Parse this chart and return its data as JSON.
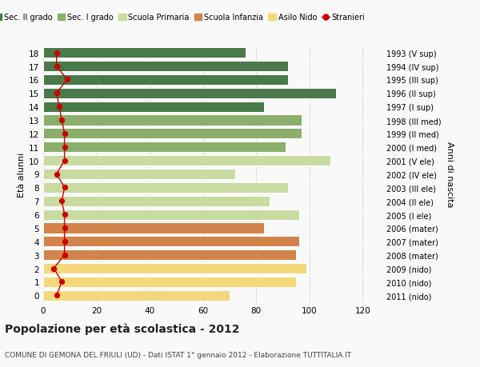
{
  "ages": [
    0,
    1,
    2,
    3,
    4,
    5,
    6,
    7,
    8,
    9,
    10,
    11,
    12,
    13,
    14,
    15,
    16,
    17,
    18
  ],
  "years": [
    "2011 (nido)",
    "2010 (nido)",
    "2009 (nido)",
    "2008 (mater)",
    "2007 (mater)",
    "2006 (mater)",
    "2005 (I ele)",
    "2004 (II ele)",
    "2003 (III ele)",
    "2002 (IV ele)",
    "2001 (V ele)",
    "2000 (I med)",
    "1999 (II med)",
    "1998 (III med)",
    "1997 (I sup)",
    "1996 (II sup)",
    "1995 (III sup)",
    "1994 (IV sup)",
    "1993 (V sup)"
  ],
  "bar_values": [
    70,
    95,
    99,
    95,
    96,
    83,
    96,
    85,
    92,
    72,
    108,
    91,
    97,
    97,
    83,
    110,
    92,
    92,
    76
  ],
  "stranieri": [
    5,
    7,
    4,
    8,
    8,
    8,
    8,
    7,
    8,
    5,
    8,
    8,
    8,
    7,
    6,
    5,
    9,
    5,
    5
  ],
  "bar_colors": [
    "#f5d87a",
    "#f5d87a",
    "#f5d87a",
    "#d2844a",
    "#d2844a",
    "#d2844a",
    "#c8dba0",
    "#c8dba0",
    "#c8dba0",
    "#c8dba0",
    "#c8dba0",
    "#8aaf6a",
    "#8aaf6a",
    "#8aaf6a",
    "#4a7a4a",
    "#4a7a4a",
    "#4a7a4a",
    "#4a7a4a",
    "#4a7a4a"
  ],
  "legend_labels": [
    "Sec. II grado",
    "Sec. I grado",
    "Scuola Primaria",
    "Scuola Infanzia",
    "Asilo Nido",
    "Stranieri"
  ],
  "legend_colors": [
    "#4a7a4a",
    "#8aaf6a",
    "#c8dba0",
    "#d2844a",
    "#f5d87a",
    "#cc0000"
  ],
  "title": "Popolazione per età scolastica - 2012",
  "subtitle": "COMUNE DI GEMONA DEL FRIULI (UD) - Dati ISTAT 1° gennaio 2012 - Elaborazione TUTTITALIA.IT",
  "ylabel": "Età alunni",
  "ylabel2": "Anni di nascita",
  "xlim": [
    0,
    128
  ],
  "bg_color": "#f9f9f9",
  "grid_color": "#cccccc",
  "stranieri_color": "#cc0000",
  "bar_height": 0.78
}
